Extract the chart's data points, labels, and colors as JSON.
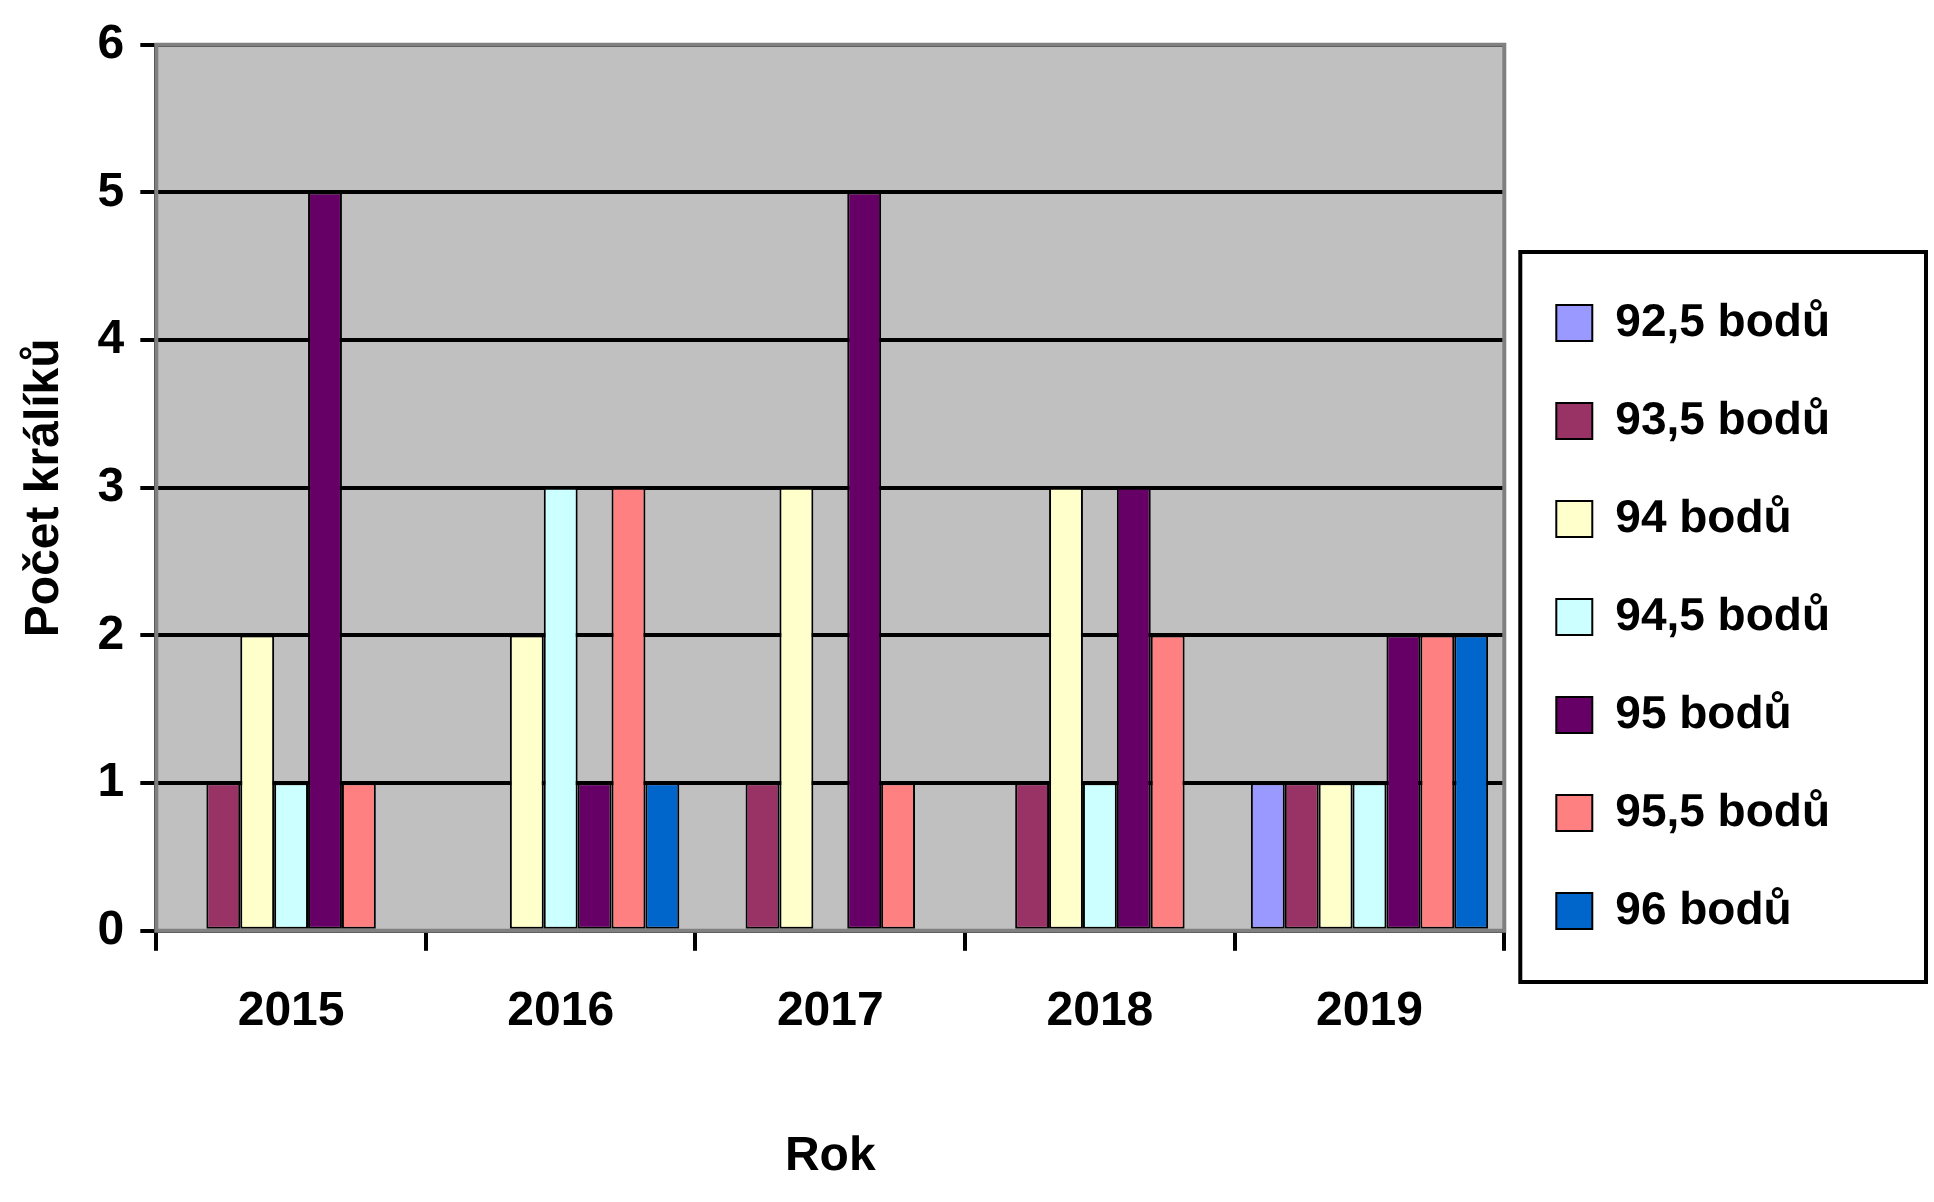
{
  "chart_data": {
    "type": "bar",
    "xlabel": "Rok",
    "ylabel": "Počet králíků",
    "categories": [
      "2015",
      "2016",
      "2017",
      "2018",
      "2019"
    ],
    "series": [
      {
        "name": "92,5 bodů",
        "color": "#9999ff",
        "values": [
          0,
          0,
          0,
          0,
          1
        ]
      },
      {
        "name": "93,5 bodů",
        "color": "#993366",
        "values": [
          1,
          0,
          1,
          1,
          1
        ]
      },
      {
        "name": "94 bodů",
        "color": "#ffffcc",
        "values": [
          2,
          2,
          3,
          3,
          1
        ]
      },
      {
        "name": "94,5 bodů",
        "color": "#ccffff",
        "values": [
          1,
          3,
          0,
          1,
          1
        ]
      },
      {
        "name": "95 bodů",
        "color": "#660066",
        "values": [
          5,
          1,
          5,
          3,
          2
        ]
      },
      {
        "name": "95,5 bodů",
        "color": "#ff8080",
        "values": [
          1,
          3,
          1,
          2,
          2
        ]
      },
      {
        "name": "96 bodů",
        "color": "#0066cc",
        "values": [
          0,
          1,
          0,
          0,
          2
        ]
      }
    ],
    "ylim": [
      0,
      6
    ],
    "yticks": [
      0,
      1,
      2,
      3,
      4,
      5,
      6
    ],
    "grid": "y",
    "legend": "right"
  }
}
